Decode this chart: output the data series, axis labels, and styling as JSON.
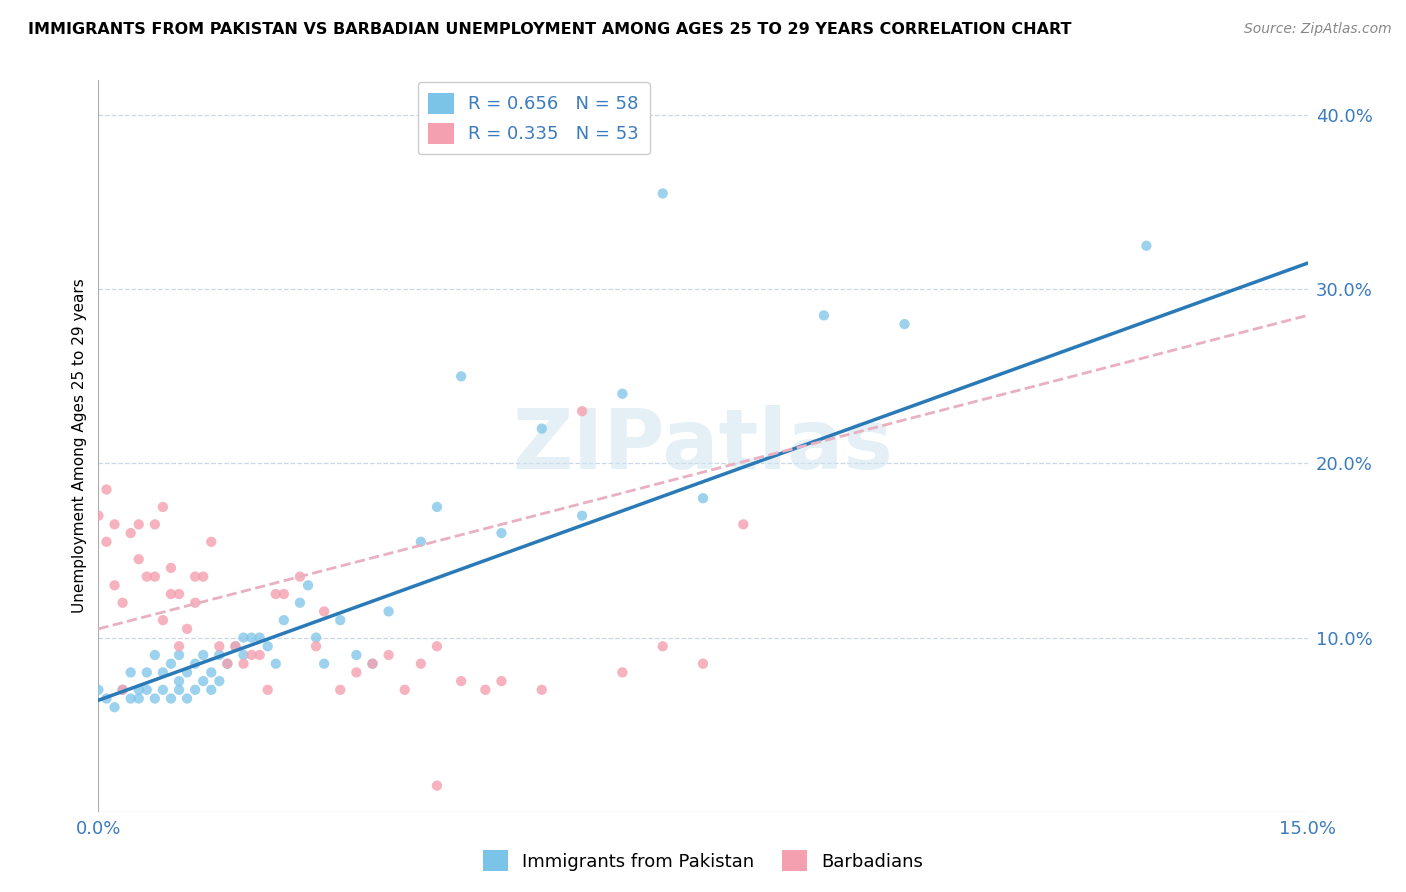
{
  "title": "IMMIGRANTS FROM PAKISTAN VS BARBADIAN UNEMPLOYMENT AMONG AGES 25 TO 29 YEARS CORRELATION CHART",
  "source": "Source: ZipAtlas.com",
  "ylabel": "Unemployment Among Ages 25 to 29 years",
  "ytick_labels": [
    "10.0%",
    "20.0%",
    "30.0%",
    "40.0%"
  ],
  "ytick_values": [
    0.1,
    0.2,
    0.3,
    0.4
  ],
  "xlim": [
    0.0,
    0.15
  ],
  "ylim": [
    0.0,
    0.42
  ],
  "watermark": "ZIPatlas",
  "legend1_r": "0.656",
  "legend1_n": "58",
  "legend2_r": "0.335",
  "legend2_n": "53",
  "color_pakistan": "#7bc4e8",
  "color_barbadian": "#f4a0b0",
  "color_line_pakistan": "#2a7ab8",
  "color_line_barbadian": "#e8b0c0",
  "pakistan_line_x": [
    0.0,
    0.15
  ],
  "pakistan_line_y": [
    0.064,
    0.315
  ],
  "barbadian_line_x": [
    0.0,
    0.15
  ],
  "barbadian_line_y": [
    0.105,
    0.285
  ],
  "pakistan_x": [
    0.0,
    0.001,
    0.002,
    0.003,
    0.004,
    0.004,
    0.005,
    0.005,
    0.006,
    0.006,
    0.007,
    0.007,
    0.008,
    0.008,
    0.009,
    0.009,
    0.01,
    0.01,
    0.01,
    0.011,
    0.011,
    0.012,
    0.012,
    0.013,
    0.013,
    0.014,
    0.014,
    0.015,
    0.015,
    0.016,
    0.017,
    0.018,
    0.018,
    0.019,
    0.02,
    0.021,
    0.022,
    0.023,
    0.025,
    0.026,
    0.027,
    0.028,
    0.03,
    0.032,
    0.034,
    0.036,
    0.04,
    0.042,
    0.045,
    0.05,
    0.055,
    0.06,
    0.065,
    0.07,
    0.075,
    0.09,
    0.1,
    0.13
  ],
  "pakistan_y": [
    0.07,
    0.065,
    0.06,
    0.07,
    0.065,
    0.08,
    0.065,
    0.07,
    0.07,
    0.08,
    0.065,
    0.09,
    0.07,
    0.08,
    0.065,
    0.085,
    0.07,
    0.075,
    0.09,
    0.065,
    0.08,
    0.07,
    0.085,
    0.075,
    0.09,
    0.07,
    0.08,
    0.075,
    0.09,
    0.085,
    0.095,
    0.09,
    0.1,
    0.1,
    0.1,
    0.095,
    0.085,
    0.11,
    0.12,
    0.13,
    0.1,
    0.085,
    0.11,
    0.09,
    0.085,
    0.115,
    0.155,
    0.175,
    0.25,
    0.16,
    0.22,
    0.17,
    0.24,
    0.355,
    0.18,
    0.285,
    0.28,
    0.325
  ],
  "barbadian_x": [
    0.0,
    0.001,
    0.001,
    0.002,
    0.002,
    0.003,
    0.003,
    0.004,
    0.005,
    0.005,
    0.006,
    0.007,
    0.007,
    0.008,
    0.008,
    0.009,
    0.009,
    0.01,
    0.01,
    0.011,
    0.012,
    0.012,
    0.013,
    0.014,
    0.015,
    0.016,
    0.017,
    0.018,
    0.019,
    0.02,
    0.021,
    0.022,
    0.023,
    0.025,
    0.027,
    0.028,
    0.03,
    0.032,
    0.034,
    0.036,
    0.038,
    0.04,
    0.042,
    0.045,
    0.048,
    0.05,
    0.055,
    0.06,
    0.065,
    0.07,
    0.075,
    0.08,
    0.042
  ],
  "barbadian_y": [
    0.17,
    0.185,
    0.155,
    0.165,
    0.13,
    0.07,
    0.12,
    0.16,
    0.145,
    0.165,
    0.135,
    0.135,
    0.165,
    0.11,
    0.175,
    0.125,
    0.14,
    0.095,
    0.125,
    0.105,
    0.12,
    0.135,
    0.135,
    0.155,
    0.095,
    0.085,
    0.095,
    0.085,
    0.09,
    0.09,
    0.07,
    0.125,
    0.125,
    0.135,
    0.095,
    0.115,
    0.07,
    0.08,
    0.085,
    0.09,
    0.07,
    0.085,
    0.095,
    0.075,
    0.07,
    0.075,
    0.07,
    0.23,
    0.08,
    0.095,
    0.085,
    0.165,
    0.015
  ]
}
